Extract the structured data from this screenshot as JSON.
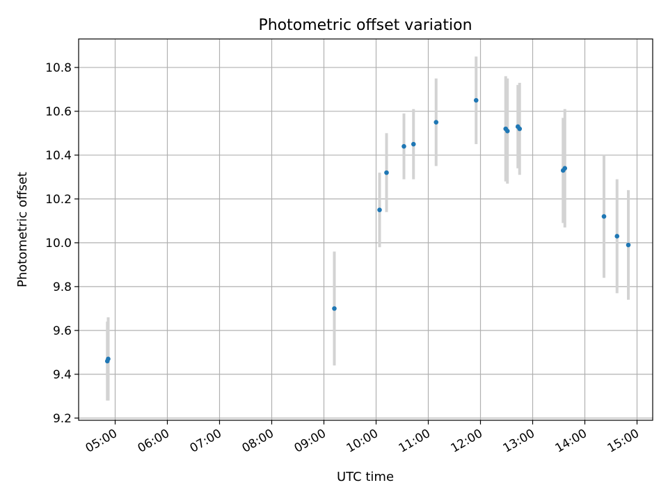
{
  "chart_data": {
    "type": "scatter",
    "title": "Photometric offset variation",
    "xlabel": "UTC time",
    "ylabel": "Photometric offset",
    "x_ticks": [
      "05:00",
      "06:00",
      "07:00",
      "08:00",
      "09:00",
      "10:00",
      "11:00",
      "12:00",
      "13:00",
      "14:00",
      "15:00"
    ],
    "y_ticks": [
      "9.2",
      "9.4",
      "9.6",
      "9.8",
      "10.0",
      "10.2",
      "10.4",
      "10.6",
      "10.8"
    ],
    "xlim": [
      "04:18",
      "15:18"
    ],
    "ylim": [
      9.19,
      10.93
    ],
    "grid": true,
    "colors": {
      "marker": "#1f77b4",
      "errorbar": "#d3d3d3"
    },
    "points": [
      {
        "time": "04:52",
        "y": 9.47,
        "err": 0.19
      },
      {
        "time": "04:51",
        "y": 9.46,
        "err": 0.18
      },
      {
        "time": "09:12",
        "y": 9.7,
        "err": 0.26
      },
      {
        "time": "10:04",
        "y": 10.15,
        "err": 0.17
      },
      {
        "time": "10:12",
        "y": 10.32,
        "err": 0.18
      },
      {
        "time": "10:32",
        "y": 10.44,
        "err": 0.15
      },
      {
        "time": "10:43",
        "y": 10.45,
        "err": 0.16
      },
      {
        "time": "11:09",
        "y": 10.55,
        "err": 0.2
      },
      {
        "time": "11:55",
        "y": 10.65,
        "err": 0.2
      },
      {
        "time": "12:29",
        "y": 10.52,
        "err": 0.24
      },
      {
        "time": "12:31",
        "y": 10.51,
        "err": 0.24
      },
      {
        "time": "12:43",
        "y": 10.53,
        "err": 0.19
      },
      {
        "time": "12:45",
        "y": 10.52,
        "err": 0.21
      },
      {
        "time": "13:35",
        "y": 10.33,
        "err": 0.24
      },
      {
        "time": "13:37",
        "y": 10.34,
        "err": 0.27
      },
      {
        "time": "14:22",
        "y": 10.12,
        "err": 0.28
      },
      {
        "time": "14:37",
        "y": 10.03,
        "err": 0.26
      },
      {
        "time": "14:50",
        "y": 9.99,
        "err": 0.25
      }
    ]
  }
}
